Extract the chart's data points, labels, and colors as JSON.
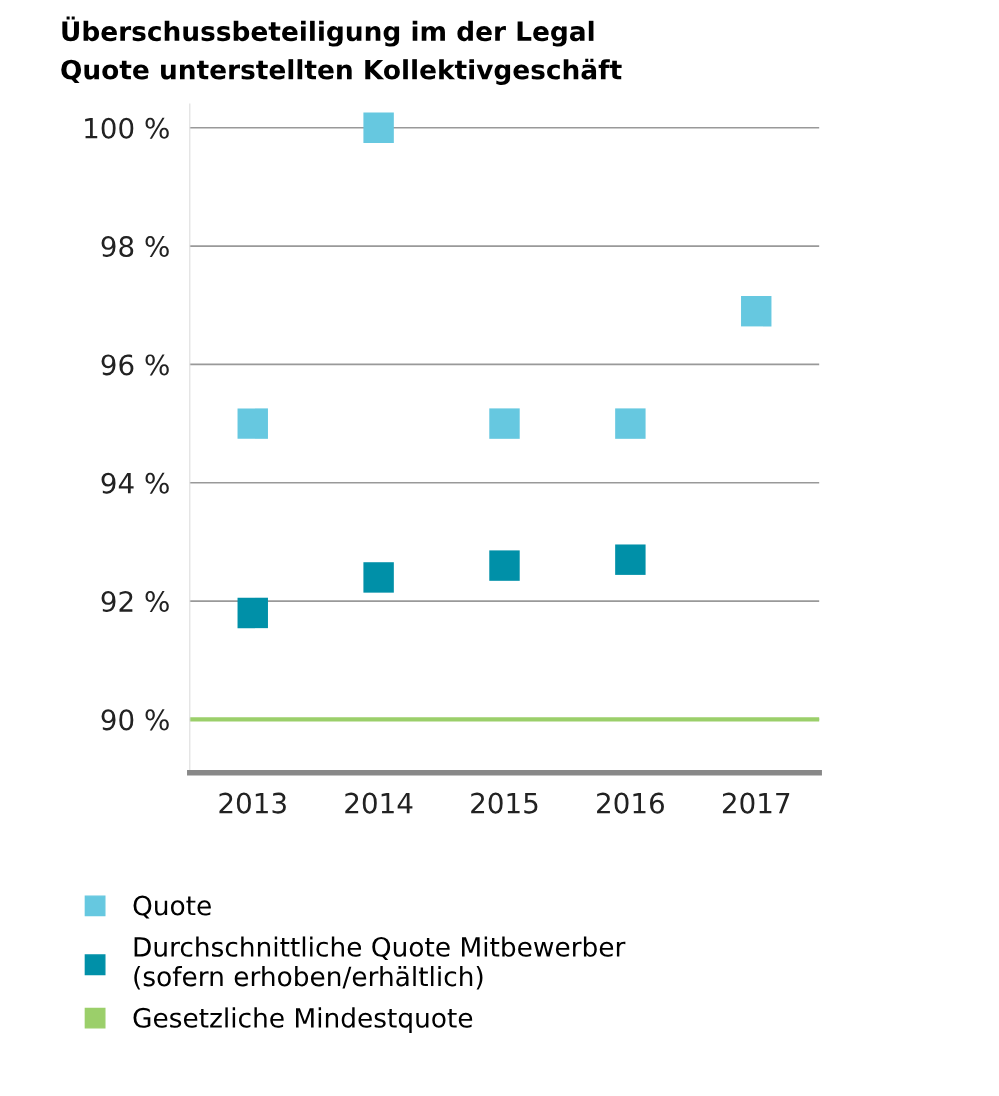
{
  "chart_data": {
    "type": "scatter",
    "title": "Überschussbeteiligung im der Legal\nQuote unterstellten Kollektivgeschäft",
    "categories": [
      "2013",
      "2014",
      "2015",
      "2016",
      "2017"
    ],
    "series": [
      {
        "name": "Quote",
        "color": "#66c8e0",
        "values": [
          95,
          100,
          95,
          95,
          96.9
        ]
      },
      {
        "name": "Durchschnittliche Quote Mitbewerber\n(sofern erhoben/erhältlich)",
        "color": "#0090a8",
        "values": [
          91.8,
          92.4,
          92.6,
          92.7,
          null
        ]
      }
    ],
    "ref_lines": [
      {
        "axis": "y",
        "value": 90,
        "label": "Gesetzliche Mindestquote",
        "color": "#9bcf6a"
      }
    ],
    "ylim": [
      89.1,
      100.4
    ],
    "yticks": [
      {
        "value": 90,
        "label": "90 %"
      },
      {
        "value": 92,
        "label": "92 %"
      },
      {
        "value": 94,
        "label": "94 %"
      },
      {
        "value": 96,
        "label": "96 %"
      },
      {
        "value": 98,
        "label": "98 %"
      },
      {
        "value": 100,
        "label": "100 %"
      }
    ],
    "grid": "y",
    "legend": "bottom",
    "marker": "square"
  }
}
